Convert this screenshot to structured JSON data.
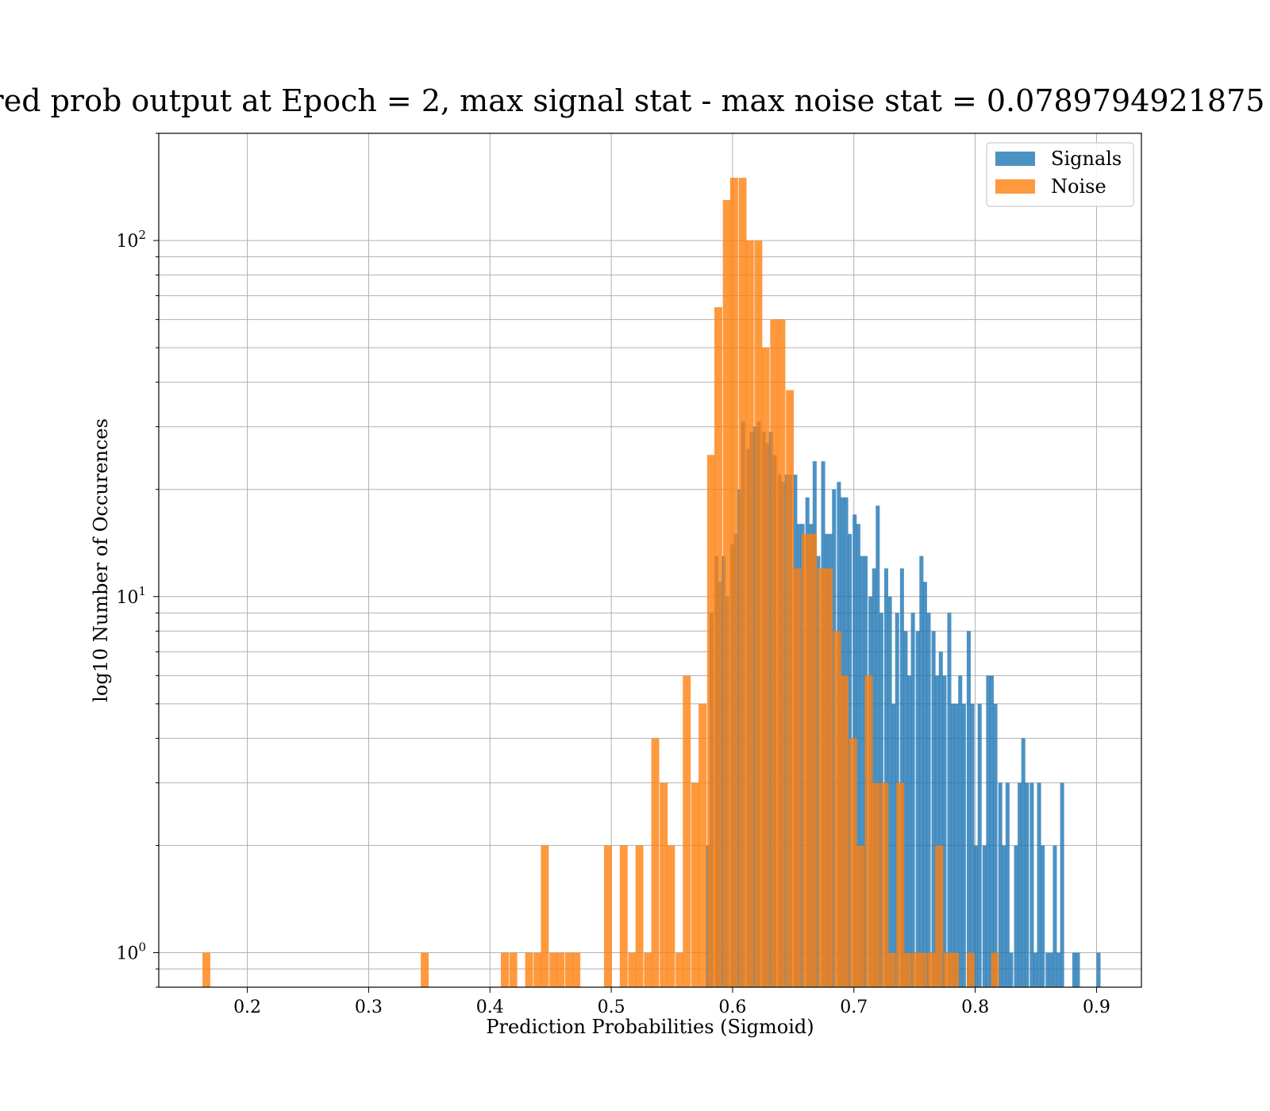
{
  "chart_data": {
    "type": "bar",
    "title": "red prob output at Epoch = 2, max signal stat - max noise stat = 0.0789794921875",
    "xlabel": "Prediction Probabilities (Sigmoid)",
    "ylabel": "log10 Number of Occurences",
    "xlim": [
      0.127,
      0.937
    ],
    "ylim": [
      0.8,
      200
    ],
    "yscale": "log",
    "grid": true,
    "legend_position": "top-right",
    "bin_width": 0.0065,
    "x_ticks": [
      {
        "value": 0.2,
        "label": "0.2"
      },
      {
        "value": 0.3,
        "label": "0.3"
      },
      {
        "value": 0.4,
        "label": "0.4"
      },
      {
        "value": 0.5,
        "label": "0.5"
      },
      {
        "value": 0.6,
        "label": "0.6"
      },
      {
        "value": 0.7,
        "label": "0.7"
      },
      {
        "value": 0.8,
        "label": "0.8"
      },
      {
        "value": 0.9,
        "label": "0.9"
      }
    ],
    "y_ticks": [
      {
        "value": 1,
        "base": "10",
        "exp": "0"
      },
      {
        "value": 10,
        "base": "10",
        "exp": "1"
      },
      {
        "value": 100,
        "base": "10",
        "exp": "2"
      }
    ],
    "series": [
      {
        "name": "Signals",
        "color": "#1f77b4",
        "opacity": 0.8,
        "bin_width": 0.0033,
        "bins": [
          [
            0.578,
            2
          ],
          [
            0.581,
            9
          ],
          [
            0.585,
            13
          ],
          [
            0.588,
            11
          ],
          [
            0.591,
            13
          ],
          [
            0.594,
            10
          ],
          [
            0.598,
            14
          ],
          [
            0.601,
            15
          ],
          [
            0.604,
            20
          ],
          [
            0.607,
            31
          ],
          [
            0.611,
            26
          ],
          [
            0.614,
            29
          ],
          [
            0.617,
            30
          ],
          [
            0.62,
            31
          ],
          [
            0.624,
            29
          ],
          [
            0.627,
            27
          ],
          [
            0.63,
            29
          ],
          [
            0.633,
            25
          ],
          [
            0.637,
            22
          ],
          [
            0.64,
            21
          ],
          [
            0.643,
            22
          ],
          [
            0.646,
            22
          ],
          [
            0.65,
            22
          ],
          [
            0.653,
            16
          ],
          [
            0.656,
            16
          ],
          [
            0.66,
            19
          ],
          [
            0.663,
            16
          ],
          [
            0.666,
            24
          ],
          [
            0.669,
            13
          ],
          [
            0.673,
            24
          ],
          [
            0.676,
            15
          ],
          [
            0.679,
            15
          ],
          [
            0.682,
            20
          ],
          [
            0.686,
            21
          ],
          [
            0.689,
            19
          ],
          [
            0.692,
            19
          ],
          [
            0.695,
            15
          ],
          [
            0.699,
            17
          ],
          [
            0.702,
            16
          ],
          [
            0.705,
            13
          ],
          [
            0.708,
            13
          ],
          [
            0.712,
            10
          ],
          [
            0.715,
            12
          ],
          [
            0.718,
            18
          ],
          [
            0.721,
            9
          ],
          [
            0.725,
            12
          ],
          [
            0.728,
            10
          ],
          [
            0.731,
            5
          ],
          [
            0.734,
            9
          ],
          [
            0.738,
            12
          ],
          [
            0.741,
            8
          ],
          [
            0.744,
            6
          ],
          [
            0.747,
            9
          ],
          [
            0.751,
            8
          ],
          [
            0.754,
            13
          ],
          [
            0.757,
            11
          ],
          [
            0.76,
            9
          ],
          [
            0.764,
            8
          ],
          [
            0.767,
            6
          ],
          [
            0.77,
            7
          ],
          [
            0.773,
            6
          ],
          [
            0.777,
            9
          ],
          [
            0.78,
            5
          ],
          [
            0.783,
            5
          ],
          [
            0.786,
            6
          ],
          [
            0.789,
            5
          ],
          [
            0.793,
            8
          ],
          [
            0.796,
            5
          ],
          [
            0.799,
            2
          ],
          [
            0.802,
            5
          ],
          [
            0.806,
            2
          ],
          [
            0.809,
            6
          ],
          [
            0.812,
            6
          ],
          [
            0.815,
            5
          ],
          [
            0.819,
            3
          ],
          [
            0.822,
            2
          ],
          [
            0.825,
            3
          ],
          [
            0.828,
            1
          ],
          [
            0.832,
            2
          ],
          [
            0.835,
            3
          ],
          [
            0.838,
            4
          ],
          [
            0.841,
            3
          ],
          [
            0.845,
            3
          ],
          [
            0.848,
            1
          ],
          [
            0.851,
            3
          ],
          [
            0.854,
            2
          ],
          [
            0.858,
            1
          ],
          [
            0.861,
            1
          ],
          [
            0.864,
            2
          ],
          [
            0.867,
            1
          ],
          [
            0.87,
            3
          ],
          [
            0.88,
            1
          ],
          [
            0.883,
            1
          ],
          [
            0.9,
            1
          ]
        ]
      },
      {
        "name": "Noise",
        "color": "#ff7f0e",
        "opacity": 0.8,
        "bin_width": 0.0065,
        "bins": [
          [
            0.163,
            1
          ],
          [
            0.343,
            1
          ],
          [
            0.409,
            1
          ],
          [
            0.416,
            1
          ],
          [
            0.429,
            1
          ],
          [
            0.436,
            1
          ],
          [
            0.442,
            2
          ],
          [
            0.449,
            1
          ],
          [
            0.455,
            1
          ],
          [
            0.462,
            1
          ],
          [
            0.468,
            1
          ],
          [
            0.494,
            2
          ],
          [
            0.507,
            2
          ],
          [
            0.514,
            1
          ],
          [
            0.52,
            2
          ],
          [
            0.527,
            1
          ],
          [
            0.533,
            4
          ],
          [
            0.54,
            3
          ],
          [
            0.546,
            2
          ],
          [
            0.553,
            1
          ],
          [
            0.559,
            6
          ],
          [
            0.566,
            3
          ],
          [
            0.572,
            5
          ],
          [
            0.579,
            25
          ],
          [
            0.585,
            65
          ],
          [
            0.592,
            130
          ],
          [
            0.598,
            150
          ],
          [
            0.605,
            150
          ],
          [
            0.611,
            100
          ],
          [
            0.618,
            100
          ],
          [
            0.624,
            50
          ],
          [
            0.631,
            60
          ],
          [
            0.637,
            60
          ],
          [
            0.644,
            38
          ],
          [
            0.65,
            12
          ],
          [
            0.657,
            15
          ],
          [
            0.663,
            15
          ],
          [
            0.67,
            12
          ],
          [
            0.676,
            12
          ],
          [
            0.683,
            8
          ],
          [
            0.689,
            6
          ],
          [
            0.696,
            4
          ],
          [
            0.702,
            2
          ],
          [
            0.709,
            6
          ],
          [
            0.715,
            3
          ],
          [
            0.722,
            3
          ],
          [
            0.728,
            1
          ],
          [
            0.735,
            3
          ],
          [
            0.741,
            1
          ],
          [
            0.748,
            1
          ],
          [
            0.754,
            1
          ],
          [
            0.761,
            1
          ],
          [
            0.767,
            2
          ],
          [
            0.774,
            1
          ],
          [
            0.78,
            1
          ],
          [
            0.793,
            1
          ],
          [
            0.813,
            1
          ]
        ]
      }
    ]
  }
}
